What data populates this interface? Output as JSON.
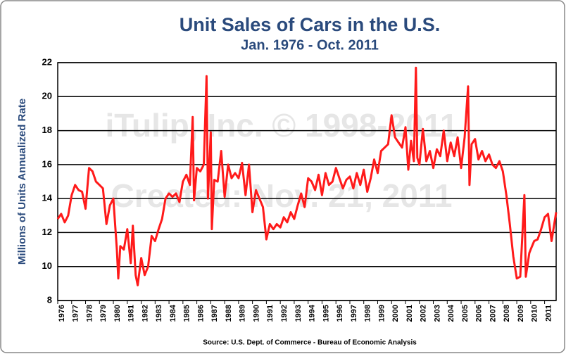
{
  "chart_data": {
    "type": "line",
    "title": "Unit Sales of Cars in the U.S.",
    "subtitle": "Jan. 1976 - Oct. 2011",
    "y_label": "Millions of Units Annualized Rate",
    "source": "Source: U.S. Dept. of Commerce - Bureau of Economic Analysis",
    "annotations": [
      "iTulip, Inc. © 1998-2011",
      "Created: Nov. 21, 2011"
    ],
    "xlim": [
      1976,
      2011.83
    ],
    "xticks": [
      1976,
      1977,
      1978,
      1979,
      1980,
      1981,
      1982,
      1983,
      1984,
      1985,
      1986,
      1987,
      1988,
      1989,
      1990,
      1991,
      1992,
      1993,
      1994,
      1995,
      1996,
      1997,
      1998,
      1999,
      2000,
      2001,
      2002,
      2003,
      2004,
      2005,
      2006,
      2007,
      2008,
      2009,
      2010,
      2011
    ],
    "ylim": [
      8,
      22
    ],
    "yticks": [
      8,
      10,
      12,
      14,
      16,
      18,
      20,
      22
    ],
    "grid": true,
    "x": [
      1976.0,
      1976.25,
      1976.5,
      1976.75,
      1977.0,
      1977.25,
      1977.5,
      1977.75,
      1978.0,
      1978.25,
      1978.5,
      1978.75,
      1979.0,
      1979.25,
      1979.5,
      1979.75,
      1980.0,
      1980.25,
      1980.35,
      1980.5,
      1980.75,
      1981.0,
      1981.25,
      1981.4,
      1981.6,
      1981.75,
      1982.0,
      1982.25,
      1982.5,
      1982.75,
      1983.0,
      1983.25,
      1983.5,
      1983.75,
      1984.0,
      1984.25,
      1984.5,
      1984.75,
      1985.0,
      1985.25,
      1985.5,
      1985.7,
      1985.8,
      1986.0,
      1986.25,
      1986.5,
      1986.7,
      1986.8,
      1987.0,
      1987.08,
      1987.25,
      1987.5,
      1987.75,
      1988.0,
      1988.25,
      1988.5,
      1988.75,
      1989.0,
      1989.25,
      1989.5,
      1989.75,
      1990.0,
      1990.25,
      1990.5,
      1990.75,
      1991.0,
      1991.25,
      1991.5,
      1991.75,
      1992.0,
      1992.25,
      1992.5,
      1992.75,
      1993.0,
      1993.25,
      1993.5,
      1993.75,
      1994.0,
      1994.25,
      1994.5,
      1994.75,
      1995.0,
      1995.25,
      1995.5,
      1995.75,
      1996.0,
      1996.25,
      1996.5,
      1996.75,
      1997.0,
      1997.25,
      1997.5,
      1997.75,
      1998.0,
      1998.25,
      1998.5,
      1998.75,
      1999.0,
      1999.25,
      1999.5,
      1999.75,
      2000.0,
      2000.25,
      2000.5,
      2000.75,
      2001.0,
      2001.2,
      2001.4,
      2001.6,
      2001.75,
      2001.85,
      2002.0,
      2002.25,
      2002.5,
      2002.75,
      2003.0,
      2003.25,
      2003.5,
      2003.75,
      2004.0,
      2004.25,
      2004.5,
      2004.75,
      2005.0,
      2005.25,
      2005.5,
      2005.6,
      2005.75,
      2006.0,
      2006.25,
      2006.5,
      2006.75,
      2007.0,
      2007.25,
      2007.5,
      2007.75,
      2008.0,
      2008.25,
      2008.5,
      2008.75,
      2009.0,
      2009.25,
      2009.55,
      2009.65,
      2009.9,
      2010.0,
      2010.25,
      2010.5,
      2010.75,
      2011.0,
      2011.25,
      2011.5,
      2011.83
    ],
    "series": [
      {
        "name": "Unit Sales",
        "color": "#ff1a1a",
        "values": [
          12.8,
          13.1,
          12.6,
          13.0,
          14.2,
          14.8,
          14.5,
          14.4,
          13.4,
          15.8,
          15.6,
          15.0,
          14.8,
          14.6,
          12.5,
          13.6,
          14.0,
          11.0,
          9.3,
          11.2,
          11.0,
          12.2,
          10.2,
          12.4,
          9.5,
          8.9,
          10.5,
          9.5,
          10.0,
          11.8,
          11.5,
          12.2,
          12.8,
          14.0,
          14.3,
          14.1,
          14.3,
          13.8,
          15.0,
          15.4,
          14.8,
          18.8,
          13.9,
          15.8,
          15.6,
          16.0,
          21.2,
          14.0,
          17.9,
          12.2,
          15.1,
          15.0,
          16.8,
          14.1,
          16.0,
          15.2,
          15.5,
          15.2,
          16.1,
          14.2,
          16.0,
          13.2,
          14.5,
          14.0,
          13.5,
          11.6,
          12.5,
          12.2,
          12.5,
          12.3,
          12.9,
          12.6,
          13.2,
          12.8,
          13.6,
          14.3,
          13.5,
          15.2,
          15.0,
          14.5,
          15.4,
          14.2,
          15.5,
          14.8,
          15.0,
          15.8,
          15.2,
          14.6,
          15.1,
          15.3,
          14.6,
          15.5,
          14.8,
          15.7,
          14.4,
          15.2,
          16.3,
          15.5,
          16.8,
          17.0,
          17.2,
          18.9,
          17.6,
          17.3,
          17.0,
          18.2,
          15.7,
          17.4,
          16.2,
          21.7,
          16.4,
          16.0,
          18.1,
          16.2,
          16.8,
          15.8,
          16.9,
          16.5,
          18.0,
          16.2,
          17.3,
          16.5,
          17.6,
          15.8,
          17.6,
          20.6,
          14.8,
          17.2,
          17.5,
          16.3,
          16.8,
          16.2,
          16.6,
          16.0,
          15.8,
          16.2,
          15.6,
          14.2,
          12.5,
          10.6,
          9.3,
          9.4,
          14.2,
          9.4,
          10.8,
          11.0,
          11.5,
          11.6,
          12.2,
          12.9,
          13.1,
          11.5,
          13.2
        ]
      }
    ]
  }
}
